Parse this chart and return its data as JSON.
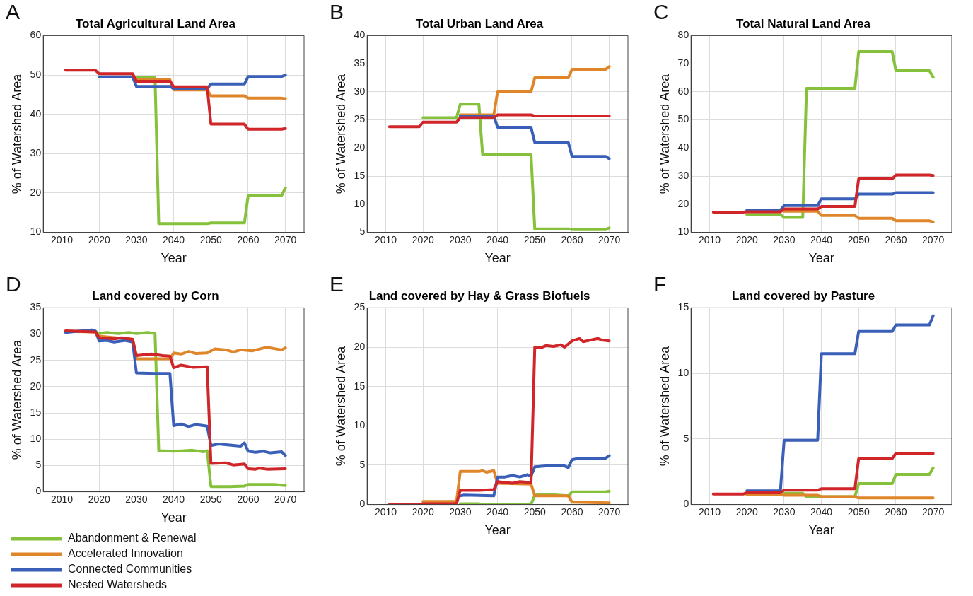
{
  "chart_data": [
    {
      "type": "line",
      "title": "Total Agricultural Land Area",
      "xlabel": "Year",
      "ylabel": "% of Watershed Area",
      "annotations": [
        "A"
      ],
      "xlim": [
        2005,
        2075
      ],
      "xticks": [
        2010,
        2020,
        2030,
        2040,
        2050,
        2060,
        2070
      ],
      "ylim": [
        10,
        60
      ],
      "yticks": [
        10,
        20,
        30,
        40,
        50,
        60
      ],
      "grid": true,
      "series": [
        {
          "color": "#86c13b",
          "x": [
            2030,
            2035,
            2036,
            2049,
            2050,
            2059,
            2060,
            2069,
            2070
          ],
          "values": [
            49.3,
            49.3,
            12.2,
            12.2,
            12.4,
            12.4,
            19.4,
            19.4,
            21.3
          ]
        },
        {
          "color": "#e0862a",
          "x": [
            2030,
            2039,
            2040,
            2049,
            2050,
            2059,
            2060,
            2069,
            2070
          ],
          "values": [
            48.8,
            48.8,
            46.2,
            46.2,
            44.7,
            44.7,
            44.1,
            44.1,
            44.0
          ]
        },
        {
          "color": "#3a5fb8",
          "x": [
            2020,
            2029,
            2030,
            2039,
            2040,
            2049,
            2050,
            2059,
            2060,
            2069,
            2070
          ],
          "values": [
            49.5,
            49.5,
            47.1,
            47.1,
            46.5,
            46.5,
            47.7,
            47.7,
            49.6,
            49.6,
            50.0
          ]
        },
        {
          "color": "#d0262a",
          "x": [
            2011,
            2019,
            2020,
            2029,
            2030,
            2039,
            2040,
            2049,
            2050,
            2059,
            2060,
            2069,
            2070
          ],
          "values": [
            51.2,
            51.2,
            50.3,
            50.3,
            48.4,
            48.4,
            47.0,
            47.0,
            37.5,
            37.5,
            36.2,
            36.2,
            36.4
          ]
        }
      ]
    },
    {
      "type": "line",
      "title": "Total Urban Land Area",
      "xlabel": "Year",
      "ylabel": "% of Watershed Area",
      "annotations": [
        "B"
      ],
      "xlim": [
        2005,
        2075
      ],
      "xticks": [
        2010,
        2020,
        2030,
        2040,
        2050,
        2060,
        2070
      ],
      "ylim": [
        5,
        40
      ],
      "yticks": [
        5,
        10,
        15,
        20,
        25,
        30,
        35,
        40
      ],
      "grid": true,
      "series": [
        {
          "color": "#86c13b",
          "x": [
            2020,
            2029,
            2030,
            2035,
            2036,
            2049,
            2050,
            2059,
            2060,
            2069,
            2070
          ],
          "values": [
            25.4,
            25.4,
            27.8,
            27.8,
            18.8,
            18.8,
            5.6,
            5.6,
            5.5,
            5.5,
            5.8
          ]
        },
        {
          "color": "#e0862a",
          "x": [
            2030,
            2039,
            2040,
            2049,
            2050,
            2059,
            2060,
            2069,
            2070
          ],
          "values": [
            25.9,
            25.9,
            30.0,
            30.0,
            32.5,
            32.5,
            34.0,
            34.0,
            34.5
          ]
        },
        {
          "color": "#3a5fb8",
          "x": [
            2030,
            2039,
            2040,
            2049,
            2050,
            2059,
            2060,
            2069,
            2070
          ],
          "values": [
            25.7,
            25.7,
            23.7,
            23.7,
            21.0,
            21.0,
            18.5,
            18.5,
            18.1
          ]
        },
        {
          "color": "#d0262a",
          "x": [
            2011,
            2019,
            2020,
            2029,
            2030,
            2039,
            2040,
            2049,
            2050,
            2070
          ],
          "values": [
            23.8,
            23.8,
            24.6,
            24.6,
            25.4,
            25.4,
            25.9,
            25.9,
            25.7,
            25.7
          ]
        }
      ]
    },
    {
      "type": "line",
      "title": "Total Natural Land Area",
      "xlabel": "Year",
      "ylabel": "% of Watershed Area",
      "annotations": [
        "C"
      ],
      "xlim": [
        2005,
        2075
      ],
      "xticks": [
        2010,
        2020,
        2030,
        2040,
        2050,
        2060,
        2070
      ],
      "ylim": [
        10,
        80
      ],
      "yticks": [
        10,
        20,
        30,
        40,
        50,
        60,
        70,
        80
      ],
      "grid": true,
      "series": [
        {
          "color": "#86c13b",
          "x": [
            2020,
            2029,
            2030,
            2035,
            2036,
            2049,
            2050,
            2059,
            2060,
            2069,
            2070
          ],
          "values": [
            16.4,
            16.4,
            15.3,
            15.3,
            61.2,
            61.2,
            74.3,
            74.3,
            67.5,
            67.5,
            65.2
          ]
        },
        {
          "color": "#e0862a",
          "x": [
            2030,
            2039,
            2040,
            2049,
            2050,
            2059,
            2060,
            2069,
            2070
          ],
          "values": [
            17.5,
            17.5,
            16.0,
            16.0,
            15.0,
            15.0,
            14.1,
            14.1,
            13.7
          ]
        },
        {
          "color": "#3a5fb8",
          "x": [
            2020,
            2029,
            2030,
            2039,
            2040,
            2049,
            2050,
            2059,
            2060,
            2070
          ],
          "values": [
            17.9,
            17.9,
            19.5,
            19.5,
            21.9,
            21.9,
            23.6,
            23.6,
            24.1,
            24.1
          ]
        },
        {
          "color": "#d0262a",
          "x": [
            2011,
            2019,
            2020,
            2029,
            2030,
            2039,
            2040,
            2049,
            2050,
            2059,
            2060,
            2069,
            2070
          ],
          "values": [
            17.2,
            17.2,
            17.3,
            17.3,
            18.3,
            18.3,
            19.2,
            19.2,
            29.0,
            29.0,
            30.4,
            30.4,
            30.2
          ]
        }
      ]
    },
    {
      "type": "line",
      "title": "Land covered by Corn",
      "xlabel": "Year",
      "ylabel": "% of Watershed Area",
      "annotations": [
        "D"
      ],
      "xlim": [
        2005,
        2075
      ],
      "xticks": [
        2010,
        2020,
        2030,
        2040,
        2050,
        2060,
        2070
      ],
      "ylim": [
        0,
        35
      ],
      "yticks": [
        0,
        5,
        10,
        15,
        20,
        25,
        30,
        35
      ],
      "grid": true,
      "legend": "bottom",
      "series": [
        {
          "name": "Abandonment & Renewal",
          "color": "#86c13b",
          "x": [
            2011,
            2019,
            2020,
            2022,
            2025,
            2028,
            2030,
            2033,
            2035,
            2036,
            2040,
            2045,
            2048,
            2049,
            2050,
            2055,
            2059,
            2060,
            2065,
            2067,
            2070
          ],
          "values": [
            30.5,
            30.5,
            30.1,
            30.3,
            30.1,
            30.3,
            30.1,
            30.3,
            30.1,
            7.8,
            7.7,
            7.9,
            7.6,
            7.8,
            1.0,
            1.0,
            1.1,
            1.4,
            1.4,
            1.4,
            1.2
          ]
        },
        {
          "name": "Accelerated Innovation",
          "color": "#e0862a",
          "x": [
            2011,
            2019,
            2020,
            2029,
            2030,
            2035,
            2039,
            2040,
            2042,
            2044,
            2046,
            2049,
            2051,
            2054,
            2056,
            2058,
            2061,
            2065,
            2069,
            2070
          ],
          "values": [
            30.5,
            30.4,
            29.6,
            29.0,
            25.3,
            25.3,
            25.3,
            26.4,
            26.2,
            26.7,
            26.3,
            26.4,
            27.2,
            27.0,
            26.6,
            27.0,
            26.8,
            27.5,
            27.0,
            27.4
          ]
        },
        {
          "name": "Connected Communities",
          "color": "#3a5fb8",
          "x": [
            2011,
            2018,
            2019,
            2020,
            2022,
            2024,
            2027,
            2029,
            2030,
            2035,
            2039,
            2040,
            2042,
            2044,
            2046,
            2049,
            2050,
            2052,
            2058,
            2059,
            2060,
            2062,
            2064,
            2066,
            2069,
            2070
          ],
          "values": [
            30.3,
            30.8,
            30.6,
            28.7,
            28.8,
            28.5,
            28.8,
            28.5,
            22.6,
            22.5,
            22.5,
            12.6,
            12.9,
            12.4,
            12.8,
            12.5,
            8.8,
            9.1,
            8.7,
            9.3,
            7.7,
            7.5,
            7.7,
            7.4,
            7.6,
            6.9
          ]
        },
        {
          "name": "Nested Watersheds",
          "color": "#d0262a",
          "x": [
            2011,
            2019,
            2020,
            2024,
            2026,
            2029,
            2030,
            2034,
            2037,
            2039,
            2040,
            2042,
            2045,
            2049,
            2050,
            2054,
            2056,
            2059,
            2060,
            2062,
            2063,
            2065,
            2070
          ],
          "values": [
            30.6,
            30.4,
            29.3,
            29.1,
            29.3,
            29.0,
            25.9,
            26.2,
            25.9,
            25.8,
            23.6,
            24.1,
            23.7,
            23.8,
            5.4,
            5.5,
            5.1,
            5.3,
            4.4,
            4.3,
            4.5,
            4.3,
            4.4
          ]
        }
      ]
    },
    {
      "type": "line",
      "title": "Land covered by Hay & Grass Biofuels",
      "xlabel": "Year",
      "ylabel": "% of Watershed Area",
      "annotations": [
        "E"
      ],
      "xlim": [
        2005,
        2075
      ],
      "xticks": [
        2010,
        2020,
        2030,
        2040,
        2050,
        2060,
        2070
      ],
      "ylim": [
        0,
        25
      ],
      "yticks": [
        0,
        5,
        10,
        15,
        20,
        25
      ],
      "grid": true,
      "series": [
        {
          "color": "#86c13b",
          "x": [
            2030,
            2035,
            2036,
            2049,
            2050,
            2053,
            2059,
            2060,
            2069,
            2070
          ],
          "values": [
            0.1,
            0.1,
            0,
            0,
            1.2,
            1.3,
            1.1,
            1.6,
            1.6,
            1.7
          ]
        },
        {
          "color": "#e0862a",
          "x": [
            2020,
            2029,
            2030,
            2035,
            2036,
            2037,
            2039,
            2040,
            2049,
            2050,
            2059,
            2060,
            2070
          ],
          "values": [
            0.4,
            0.4,
            4.2,
            4.2,
            4.3,
            4.1,
            4.3,
            2.7,
            2.6,
            1.1,
            1.1,
            0.3,
            0.2
          ]
        },
        {
          "color": "#3a5fb8",
          "x": [
            2030,
            2031,
            2039,
            2040,
            2042,
            2044,
            2046,
            2048,
            2049,
            2050,
            2053,
            2058,
            2059,
            2060,
            2062,
            2066,
            2067,
            2069,
            2070
          ],
          "values": [
            1.1,
            1.2,
            1.1,
            3.5,
            3.5,
            3.7,
            3.5,
            3.8,
            3.6,
            4.8,
            4.9,
            4.9,
            4.7,
            5.7,
            5.9,
            5.9,
            5.8,
            5.9,
            6.2
          ]
        },
        {
          "color": "#d0262a",
          "x": [
            2011,
            2019,
            2020,
            2029,
            2030,
            2035,
            2039,
            2040,
            2044,
            2046,
            2049,
            2050,
            2052,
            2053,
            2055,
            2057,
            2058,
            2060,
            2062,
            2063,
            2065,
            2067,
            2068,
            2070
          ],
          "values": [
            0,
            0,
            0.1,
            0.1,
            1.8,
            1.8,
            1.9,
            2.9,
            2.7,
            2.9,
            2.8,
            20.0,
            20.0,
            20.2,
            20.1,
            20.3,
            20.0,
            20.8,
            21.1,
            20.7,
            20.9,
            21.1,
            20.9,
            20.8
          ]
        }
      ]
    },
    {
      "type": "line",
      "title": "Land covered by Pasture",
      "xlabel": "Year",
      "ylabel": "% of Watershed Area",
      "annotations": [
        "F"
      ],
      "xlim": [
        2005,
        2075
      ],
      "xticks": [
        2010,
        2020,
        2030,
        2040,
        2050,
        2060,
        2070
      ],
      "ylim": [
        0,
        15
      ],
      "yticks": [
        0,
        5,
        10,
        15
      ],
      "grid": true,
      "series": [
        {
          "color": "#86c13b",
          "x": [
            2030,
            2035,
            2036,
            2049,
            2050,
            2059,
            2060,
            2069,
            2070
          ],
          "values": [
            0.85,
            0.85,
            0.6,
            0.6,
            1.6,
            1.6,
            2.3,
            2.3,
            2.8
          ]
        },
        {
          "color": "#e0862a",
          "x": [
            2020,
            2029,
            2030,
            2039,
            2040,
            2049,
            2050,
            2070
          ],
          "values": [
            0.75,
            0.75,
            0.7,
            0.7,
            0.6,
            0.6,
            0.5,
            0.5
          ]
        },
        {
          "color": "#3a5fb8",
          "x": [
            2020,
            2029,
            2030,
            2039,
            2040,
            2049,
            2050,
            2059,
            2060,
            2069,
            2070
          ],
          "values": [
            1.05,
            1.05,
            4.9,
            4.9,
            11.5,
            11.5,
            13.2,
            13.2,
            13.7,
            13.7,
            14.4
          ]
        },
        {
          "color": "#d0262a",
          "x": [
            2011,
            2019,
            2020,
            2029,
            2030,
            2039,
            2040,
            2049,
            2050,
            2059,
            2060,
            2070
          ],
          "values": [
            0.8,
            0.8,
            0.9,
            0.9,
            1.1,
            1.1,
            1.2,
            1.2,
            3.5,
            3.5,
            3.9,
            3.9
          ]
        }
      ]
    }
  ]
}
